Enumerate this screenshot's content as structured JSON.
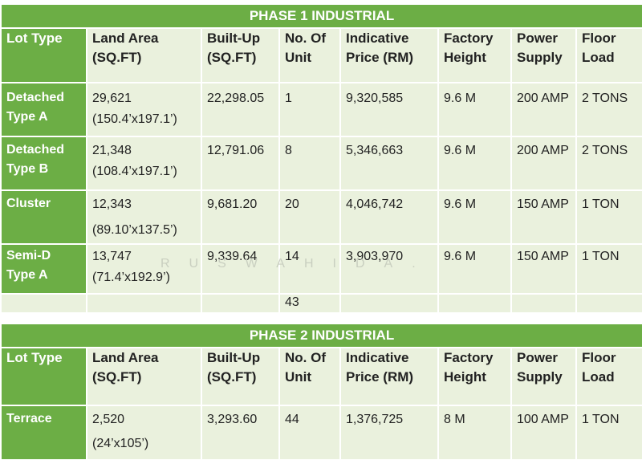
{
  "phase1": {
    "title": "PHASE 1 INDUSTRIAL",
    "headers": {
      "lot_type": "Lot Type",
      "land_area": [
        "Land Area",
        "(SQ.FT)"
      ],
      "built_up": [
        "Built-Up",
        "(SQ.FT)"
      ],
      "units": [
        "No. Of",
        "Unit"
      ],
      "price": [
        "Indicative",
        "Price (RM)"
      ],
      "height": [
        "Factory",
        "Height"
      ],
      "power": [
        "Power",
        "Supply"
      ],
      "floor": [
        "Floor",
        "Load"
      ]
    },
    "rows": [
      {
        "lot_type": [
          "Detached",
          "Type A"
        ],
        "land_area": "29,621",
        "land_dim": "(150.4’x197.1’)",
        "built_up": "22,298.05",
        "units": "1",
        "price": "9,320,585",
        "height": "9.6 M",
        "power": "200 AMP",
        "floor": "2 TONS"
      },
      {
        "lot_type": [
          "Detached",
          "Type B"
        ],
        "land_area": "21,348",
        "land_dim": "(108.4’x197.1’)",
        "built_up": "12,791.06",
        "units": "8",
        "price": "5,346,663",
        "height": "9.6 M",
        "power": "200 AMP",
        "floor": "2 TONS"
      },
      {
        "lot_type": [
          "Cluster",
          ""
        ],
        "land_area": "12,343",
        "land_dim": "(89.10’x137.5’)",
        "built_up": "9,681.20",
        "units": "20",
        "price": "4,046,742",
        "height": "9.6 M",
        "power": "150 AMP",
        "floor": "1 TON"
      },
      {
        "lot_type": [
          "Semi-D",
          "Type A"
        ],
        "land_area": "13,747",
        "land_dim": "(71.4’x192.9’)",
        "built_up": "9,339.64",
        "units": "14",
        "price": "3,903,970",
        "height": "9.6 M",
        "power": "150 AMP",
        "floor": "1 TON"
      }
    ],
    "total_units": "43"
  },
  "phase2": {
    "title": "PHASE 2 INDUSTRIAL",
    "headers": {
      "lot_type": "Lot Type",
      "land_area": [
        "Land Area",
        "(SQ.FT)"
      ],
      "built_up": [
        "Built-Up",
        "(SQ.FT)"
      ],
      "units": [
        "No. Of",
        "Unit"
      ],
      "price": [
        "Indicative",
        "Price (RM)"
      ],
      "height": [
        "Factory",
        "Height"
      ],
      "power": [
        "Power",
        "Supply"
      ],
      "floor": [
        "Floor",
        "Load"
      ]
    },
    "rows": [
      {
        "lot_type": [
          "Terrace",
          ""
        ],
        "land_area": "2,520",
        "land_dim": "(24’x105’)",
        "built_up": "3,293.60",
        "units": "44",
        "price": "1,376,725",
        "height": "8 M",
        "power": "100 AMP",
        "floor": "1 TON"
      }
    ]
  },
  "watermark": "RUSWAHIDA."
}
